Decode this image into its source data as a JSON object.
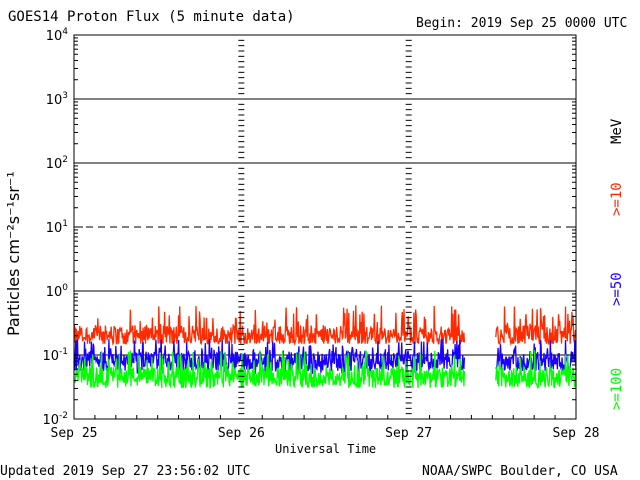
{
  "header": {
    "title": "GOES14 Proton Flux (5 minute data)",
    "begin": "Begin: 2019 Sep 25 0000 UTC"
  },
  "footer": {
    "updated": "Updated 2019 Sep 27 23:56:02 UTC",
    "credit": "NOAA/SWPC Boulder, CO USA"
  },
  "colors": {
    "ge10": "#ff2a00",
    "ge50": "#1a00ff",
    "ge100": "#00ff00",
    "axes": "#000000",
    "background": "#ffffff"
  },
  "chart_data": {
    "type": "line",
    "title": "GOES14 Proton Flux (5 minute data)",
    "xlabel": "Universal Time",
    "ylabel": "Particles cm⁻²s⁻¹sr⁻¹",
    "yscale": "log",
    "ylim": [
      0.01,
      10000
    ],
    "xlim_days": [
      0,
      3
    ],
    "x_ticks": [
      "Sep 25",
      "Sep 26",
      "Sep 27",
      "Sep 28"
    ],
    "y_ticks": [
      {
        "base": "10",
        "exp": "-2",
        "value": 0.01
      },
      {
        "base": "10",
        "exp": "-1",
        "value": 0.1
      },
      {
        "base": "10",
        "exp": "0",
        "value": 1
      },
      {
        "base": "10",
        "exp": "1",
        "value": 10
      },
      {
        "base": "10",
        "exp": "2",
        "value": 100
      },
      {
        "base": "10",
        "exp": "3",
        "value": 1000
      },
      {
        "base": "10",
        "exp": "4",
        "value": 10000
      }
    ],
    "reference_lines": [
      {
        "value": 1,
        "style": "solid"
      },
      {
        "value": 10,
        "style": "dashed"
      },
      {
        "value": 100,
        "style": "solid"
      },
      {
        "value": 1000,
        "style": "solid"
      },
      {
        "value": 0.1,
        "style": "solid"
      }
    ],
    "unit_label": "MeV",
    "data_gap": [
      "Sep 27 08:00",
      "Sep 27 12:30"
    ],
    "series": [
      {
        "name": ">=10",
        "color": "#ff2a00",
        "baseline": 0.2,
        "typical_range": [
          0.15,
          0.6
        ]
      },
      {
        "name": ">=50",
        "color": "#1a00ff",
        "baseline": 0.08,
        "typical_range": [
          0.05,
          0.18
        ]
      },
      {
        "name": ">=100",
        "color": "#00ff00",
        "baseline": 0.045,
        "typical_range": [
          0.03,
          0.12
        ]
      }
    ]
  }
}
